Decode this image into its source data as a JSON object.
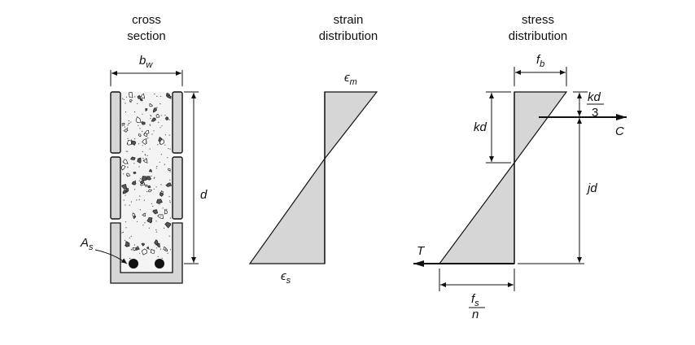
{
  "cross_section": {
    "title_line1": "cross",
    "title_line2": "section",
    "width_label": "b",
    "width_sub": "w",
    "depth_label": "d",
    "steel_label": "A",
    "steel_sub": "s"
  },
  "strain": {
    "title_line1": "strain",
    "title_line2": "distribution",
    "top_label": "ϵ",
    "top_sub": "m",
    "bottom_label": "ϵ",
    "bottom_sub": "s"
  },
  "stress": {
    "title_line1": "stress",
    "title_line2": "distribution",
    "top_label": "f",
    "top_sub": "b",
    "kd_label": "kd",
    "kd3_num": "kd",
    "kd3_den": "3",
    "c_label": "C",
    "jd_label": "jd",
    "t_label": "T",
    "fs_num": "f",
    "fs_num_sub": "s",
    "fs_den": "n"
  }
}
